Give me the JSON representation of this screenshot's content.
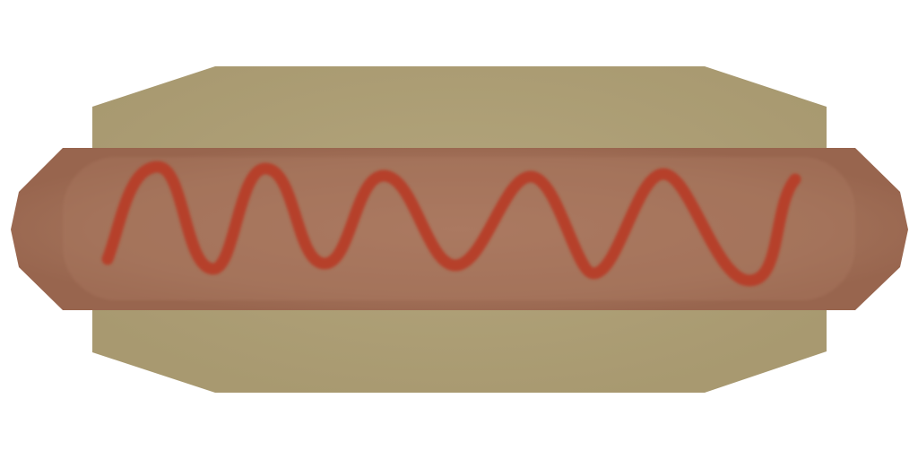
{
  "item": {
    "icon": "hotdog-icon",
    "parts": [
      "bun",
      "sausage",
      "ketchup"
    ]
  },
  "colors": {
    "background": "#ffffff",
    "bun": "#a99a73",
    "bun_highlight": "#b3a57c",
    "sausage": "#9a6a52",
    "sausage_highlight": "#a8765c",
    "ketchup": "#b6412c",
    "ketchup_dark": "#a2361f"
  }
}
